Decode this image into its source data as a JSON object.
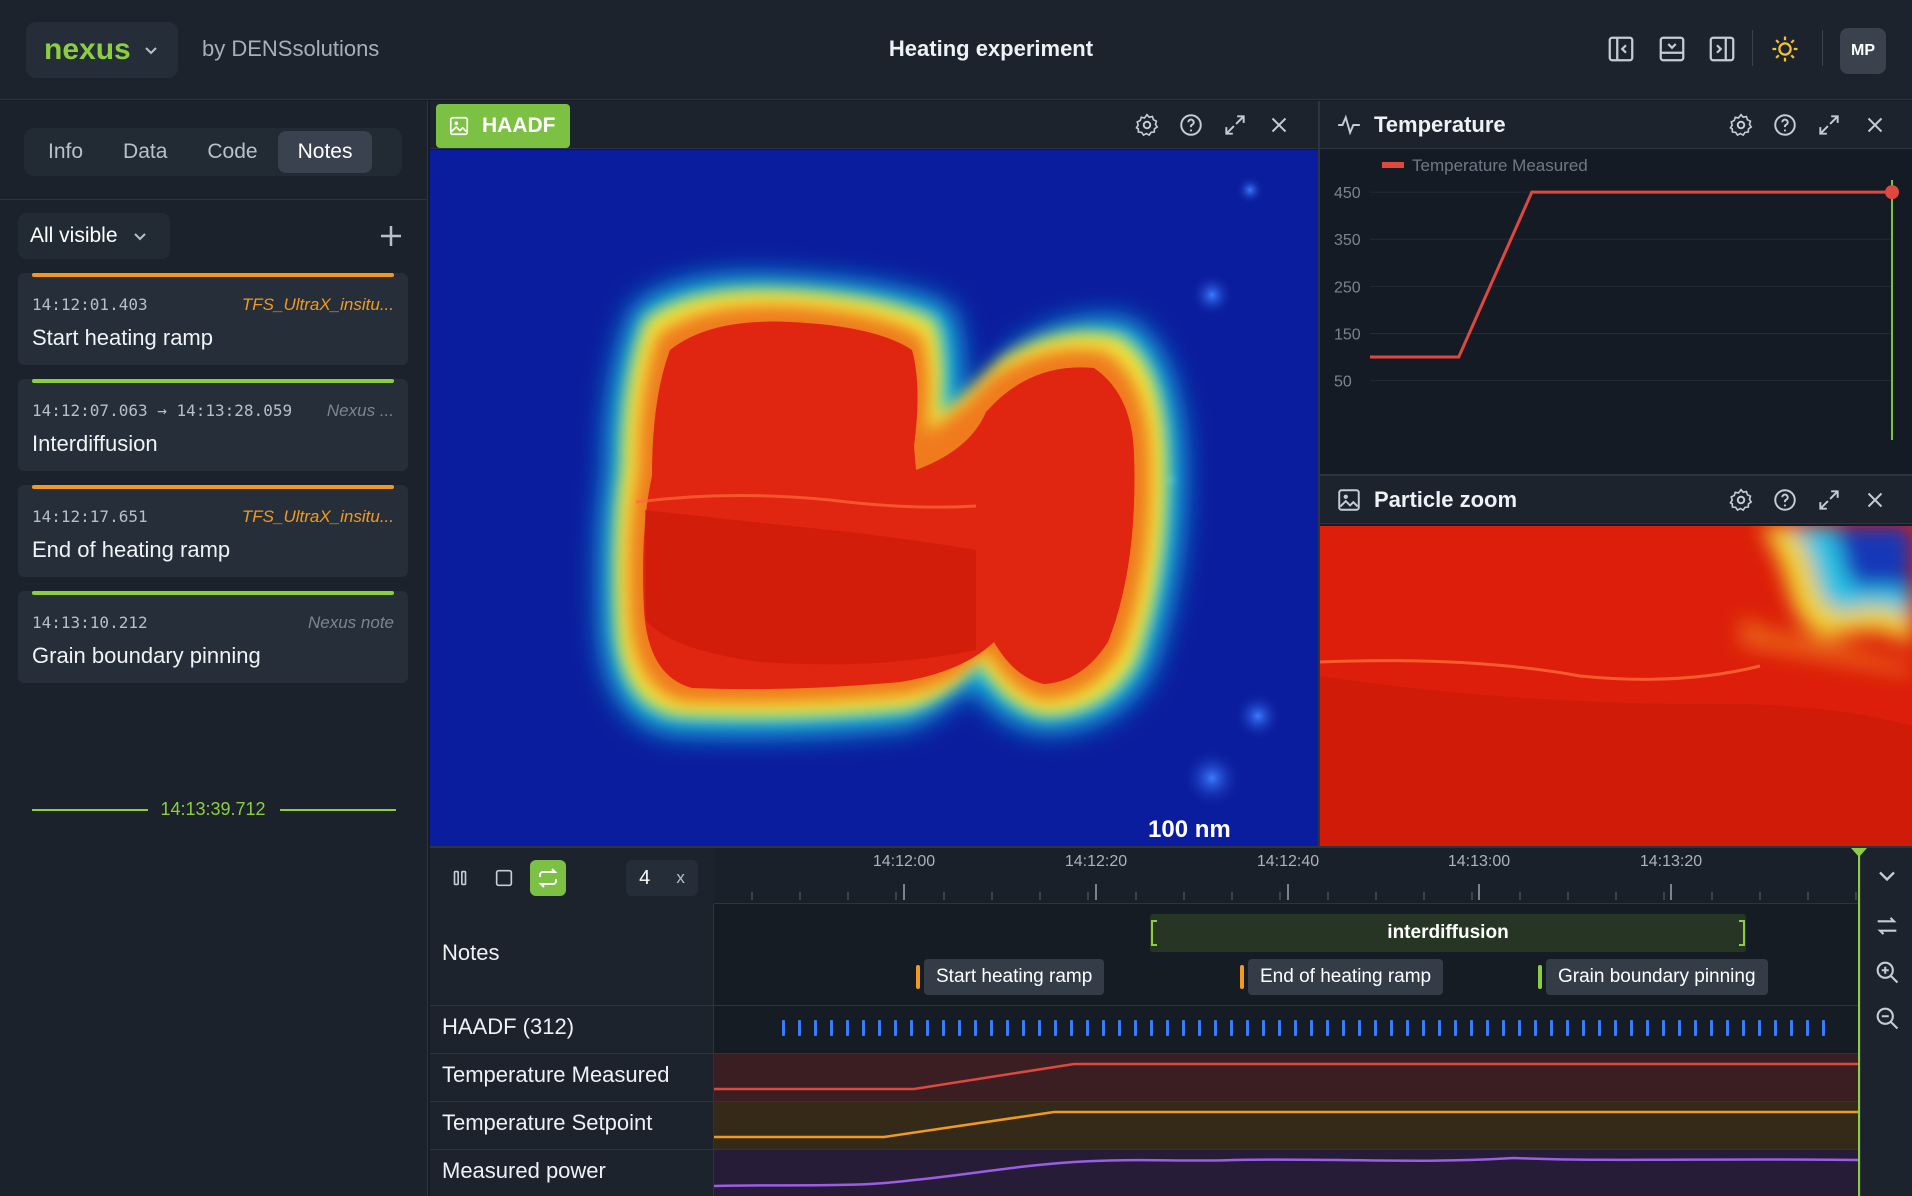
{
  "app": {
    "name": "nexus",
    "by": "by DENSsolutions",
    "title": "Heating experiment",
    "user_initials": "MP"
  },
  "sidebar": {
    "tabs": [
      {
        "label": "Info"
      },
      {
        "label": "Data"
      },
      {
        "label": "Code"
      },
      {
        "label": "Notes"
      }
    ],
    "active_tab": "Notes",
    "filter": "All visible",
    "notes": [
      {
        "time": "14:12:01.403",
        "source": "TFS_UltraX_insitu...",
        "title": "Start heating ramp",
        "color": "#f29a1f"
      },
      {
        "time": "14:12:07.063 → 14:13:28.059",
        "source": "Nexus ...",
        "title": "Interdiffusion",
        "color": "#8ccf3e"
      },
      {
        "time": "14:12:17.651",
        "source": "TFS_UltraX_insitu...",
        "title": "End of heating ramp",
        "color": "#f29a1f"
      },
      {
        "time": "14:13:10.212",
        "source": "Nexus note",
        "title": "Grain boundary pinning",
        "color": "#8ccf3e"
      }
    ],
    "cursor_time": "14:13:39.712"
  },
  "panels": {
    "haadf": {
      "title": "HAADF",
      "scale_bar": "100 nm"
    },
    "temperature": {
      "title": "Temperature"
    },
    "zoom": {
      "title": "Particle zoom"
    }
  },
  "chart_data": {
    "type": "line",
    "series": [
      {
        "name": "Temperature Measured",
        "color": "#e0473f",
        "x": [
          0,
          0.17,
          0.31,
          1.0
        ],
        "y": [
          100,
          100,
          450,
          450
        ]
      }
    ],
    "y_ticks": [
      50,
      150,
      250,
      350,
      450
    ],
    "ylim": [
      30,
      480
    ]
  },
  "timeline": {
    "speed": "4",
    "speed_unit": "x",
    "ticks": [
      "14:12:00",
      "14:12:20",
      "14:12:40",
      "14:13:00",
      "14:13:20"
    ],
    "rows": [
      "Notes",
      "HAADF (312)",
      "Temperature Measured",
      "Temperature Setpoint",
      "Measured power"
    ],
    "interval_label": "interdiffusion",
    "note_chips": [
      "Start heating ramp",
      "End of heating ramp",
      "Grain boundary pinning"
    ],
    "colors": {
      "accent": "#8ccf3e",
      "measured": "#e0473f",
      "setpoint": "#f29a1f",
      "power": "#9b5de5",
      "frames": "#3b7bff"
    }
  }
}
